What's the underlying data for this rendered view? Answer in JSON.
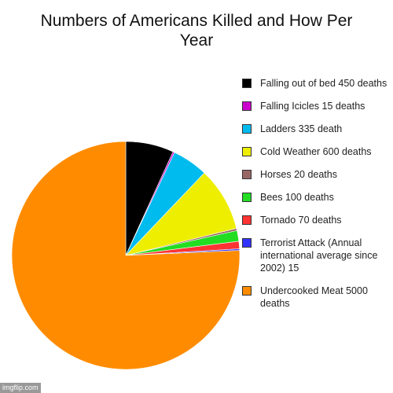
{
  "chart_data": {
    "type": "pie",
    "title_lines": [
      "Numbers of Americans Killed and How Per",
      "Year"
    ],
    "slices": [
      {
        "label": "Falling out of bed 450 deaths",
        "value": 450,
        "color": "#000000"
      },
      {
        "label": "Falling Icicles 15 deaths",
        "value": 15,
        "color": "#cc00cc"
      },
      {
        "label": "Ladders 335 death",
        "value": 335,
        "color": "#00bbee"
      },
      {
        "label": "Cold Weather 600 deaths",
        "value": 600,
        "color": "#eeee00"
      },
      {
        "label": "Horses 20 deaths",
        "value": 20,
        "color": "#996666"
      },
      {
        "label": "Bees 100 deaths",
        "value": 100,
        "color": "#22dd22"
      },
      {
        "label": "Tornado 70 deaths",
        "value": 70,
        "color": "#ff3333"
      },
      {
        "label": "Terrorist Attack (Annual international average since 2002) 15",
        "value": 15,
        "color": "#3333ff"
      },
      {
        "label": "Undercooked Meat 5000 deaths",
        "value": 5000,
        "color": "#ff8c00"
      }
    ],
    "legend_position": "right"
  },
  "watermark": "imgflip.com"
}
